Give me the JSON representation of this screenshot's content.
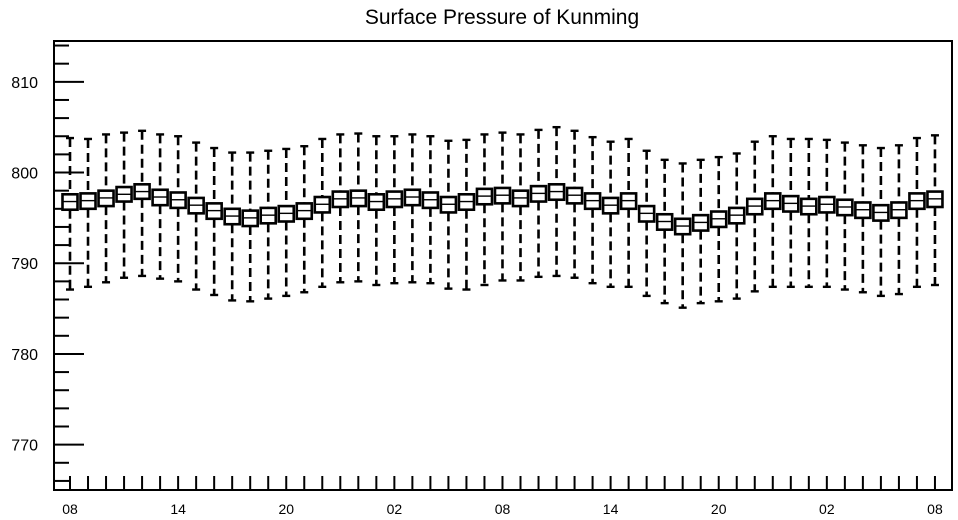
{
  "chart_data": {
    "type": "boxplot",
    "title": "Surface Pressure of Kunming",
    "xlabel": "",
    "ylabel": "",
    "ylim": [
      765.0,
      814.5
    ],
    "yticks": [
      770,
      780,
      790,
      800,
      810
    ],
    "x_tick_labels": [
      "08",
      "14",
      "20",
      "02",
      "08",
      "14",
      "20",
      "02",
      "08"
    ],
    "x_tick_steps": [
      0,
      6,
      12,
      18,
      24,
      30,
      36,
      42,
      48
    ],
    "n_steps": 49,
    "grid": false,
    "legend": "none",
    "series": [
      {
        "median": [
          796.8,
          796.9,
          797.2,
          797.6,
          797.9,
          797.3,
          797.0,
          796.4,
          795.8,
          795.2,
          795.0,
          795.3,
          795.5,
          795.8,
          796.5,
          797.1,
          797.2,
          796.8,
          797.1,
          797.3,
          797.0,
          796.5,
          796.8,
          797.4,
          797.5,
          797.2,
          797.7,
          797.9,
          797.5,
          796.9,
          796.4,
          796.9,
          795.5,
          794.6,
          794.1,
          794.5,
          794.9,
          795.3,
          796.3,
          796.9,
          796.6,
          796.3,
          796.5,
          796.2,
          795.9,
          795.6,
          795.9,
          796.9,
          797.1
        ],
        "q1": [
          795.9,
          796.0,
          796.3,
          796.8,
          797.1,
          796.4,
          796.1,
          795.5,
          794.9,
          794.3,
          794.1,
          794.4,
          794.6,
          794.9,
          795.6,
          796.2,
          796.3,
          795.9,
          796.2,
          796.4,
          796.1,
          795.6,
          795.9,
          796.5,
          796.6,
          796.3,
          796.8,
          797.0,
          796.6,
          796.0,
          795.5,
          796.0,
          794.6,
          793.7,
          793.2,
          793.6,
          794.0,
          794.4,
          795.4,
          796.0,
          795.7,
          795.4,
          795.6,
          795.3,
          795.0,
          794.7,
          795.0,
          796.0,
          796.2
        ],
        "q3": [
          797.6,
          797.7,
          798.0,
          798.4,
          798.7,
          798.1,
          797.8,
          797.2,
          796.6,
          796.0,
          795.8,
          796.1,
          796.3,
          796.6,
          797.3,
          797.9,
          798.0,
          797.6,
          797.9,
          798.1,
          797.8,
          797.3,
          797.6,
          798.2,
          798.3,
          798.0,
          798.5,
          798.7,
          798.3,
          797.7,
          797.2,
          797.7,
          796.3,
          795.4,
          794.9,
          795.3,
          795.7,
          796.1,
          797.1,
          797.7,
          797.4,
          797.1,
          797.3,
          797.0,
          796.7,
          796.4,
          796.7,
          797.7,
          797.9
        ],
        "whisker_low": [
          787.1,
          787.4,
          787.9,
          788.4,
          788.6,
          788.3,
          788.0,
          787.1,
          786.5,
          785.9,
          785.8,
          786.1,
          786.4,
          786.8,
          787.4,
          787.9,
          788.0,
          787.6,
          787.8,
          787.9,
          787.8,
          787.2,
          787.1,
          787.6,
          788.1,
          788.1,
          788.5,
          788.6,
          788.4,
          787.8,
          787.4,
          787.4,
          786.4,
          785.6,
          785.1,
          785.6,
          785.8,
          786.1,
          786.9,
          787.4,
          787.4,
          787.4,
          787.4,
          787.1,
          786.8,
          786.4,
          786.6,
          787.4,
          787.6
        ],
        "whisker_high": [
          803.8,
          803.7,
          804.2,
          804.4,
          804.6,
          804.2,
          804.0,
          803.3,
          802.7,
          802.2,
          802.2,
          802.4,
          802.6,
          802.9,
          803.7,
          804.2,
          804.3,
          804.0,
          804.0,
          804.2,
          804.0,
          803.5,
          803.6,
          804.2,
          804.4,
          804.2,
          804.7,
          805.0,
          804.6,
          803.9,
          803.4,
          803.7,
          802.4,
          801.4,
          801.0,
          801.4,
          801.7,
          802.1,
          803.4,
          804.0,
          803.7,
          803.7,
          803.6,
          803.3,
          803.0,
          802.7,
          803.0,
          803.8,
          804.1
        ]
      }
    ]
  }
}
